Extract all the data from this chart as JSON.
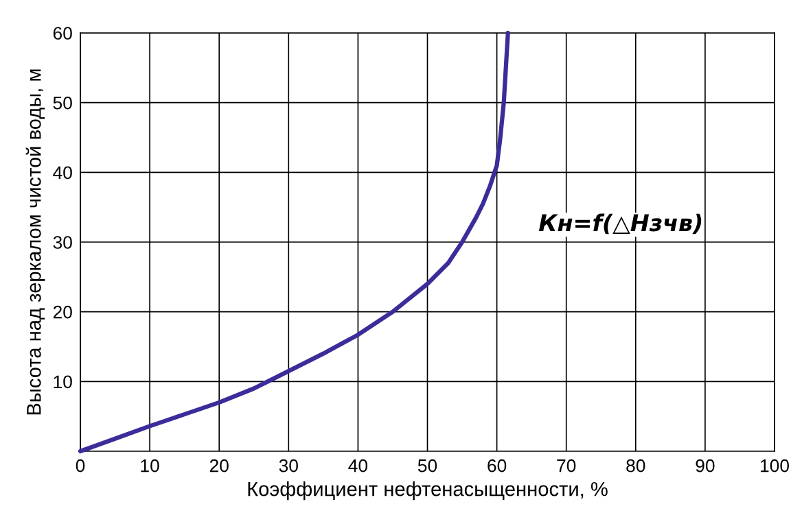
{
  "chart_data": {
    "type": "line",
    "xlabel": "Коэффициент нефтенасыщенности, %",
    "ylabel": "Высота над зеркалом чистой воды, м",
    "x": [
      0,
      5,
      10,
      15,
      20,
      25,
      27,
      30,
      35,
      40,
      45,
      50,
      53,
      55,
      57,
      58,
      59,
      60,
      60.5,
      61,
      61.3,
      61.6
    ],
    "series": [
      {
        "color": "#3a2d9a",
        "values": [
          0,
          1.8,
          3.6,
          5.3,
          7.0,
          9.0,
          10.0,
          11.5,
          14.0,
          16.7,
          20.0,
          24.0,
          27.0,
          30.0,
          33.5,
          35.5,
          38.0,
          41.0,
          45.0,
          50.0,
          55.0,
          60.0
        ]
      }
    ],
    "xlim": [
      0,
      100
    ],
    "ylim": [
      0,
      60
    ],
    "xticks": [
      0,
      10,
      20,
      30,
      40,
      50,
      60,
      70,
      80,
      90,
      100
    ],
    "yticks": [
      10,
      20,
      30,
      40,
      50,
      60
    ],
    "grid": true,
    "marker": "none",
    "line_style": "solid",
    "annotations": [
      "Кн=f(△Нзчв)"
    ]
  }
}
